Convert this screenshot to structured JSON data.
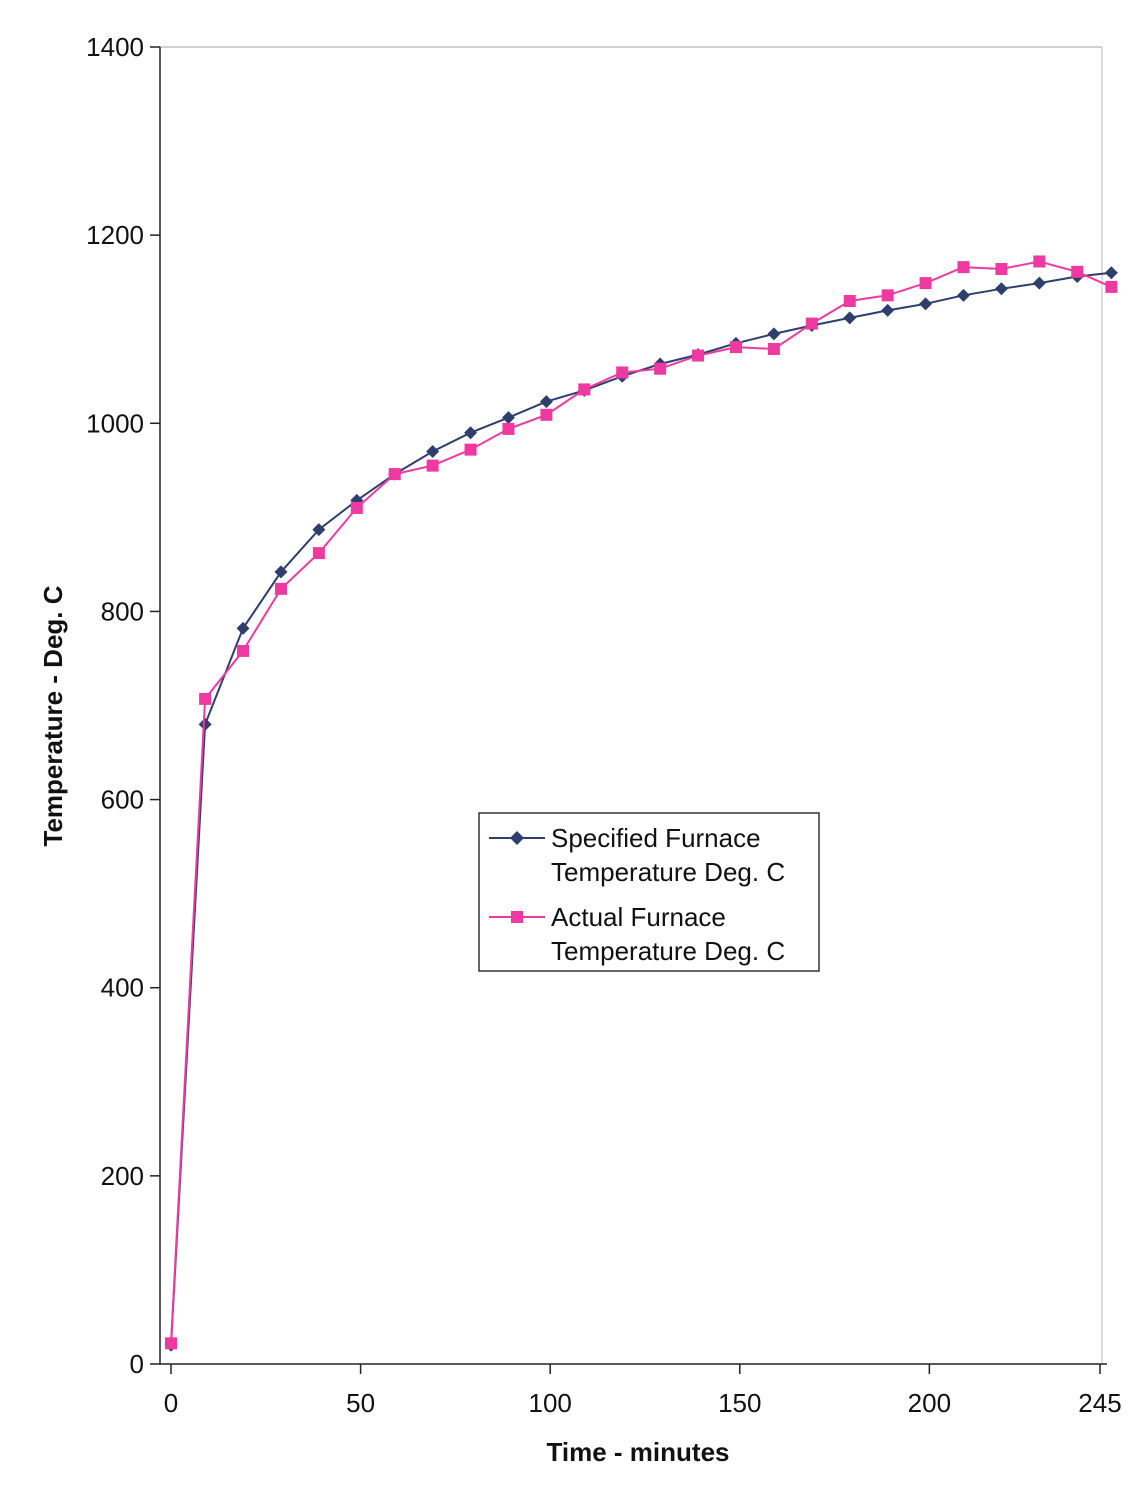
{
  "chart_data": {
    "type": "line",
    "xlabel": "Time - minutes",
    "ylabel": "Temperature - Deg. C",
    "xlim": [
      0,
      245
    ],
    "ylim": [
      0,
      1400
    ],
    "xticks": [
      0,
      50,
      100,
      150,
      200,
      245
    ],
    "yticks": [
      0,
      200,
      400,
      600,
      800,
      1000,
      1200,
      1400
    ],
    "grid": false,
    "legend": {
      "placement": "center-right"
    },
    "x": [
      0,
      9,
      19,
      29,
      39,
      49,
      59,
      69,
      79,
      89,
      99,
      109,
      119,
      129,
      139,
      149,
      159,
      169,
      179,
      189,
      199,
      209,
      219,
      229,
      239,
      248
    ],
    "series": [
      {
        "name": "Specified Furnace Temperature Deg. C",
        "line1": "Specified Furnace",
        "line2": "Temperature Deg. C",
        "color": "#2e3f6e",
        "marker": "diamond",
        "values": [
          20,
          680,
          782,
          842,
          887,
          918,
          946,
          970,
          990,
          1006,
          1023,
          1035,
          1050,
          1063,
          1073,
          1085,
          1095,
          1104,
          1112,
          1120,
          1127,
          1136,
          1143,
          1149,
          1156,
          1160
        ]
      },
      {
        "name": "Actual Furnace Temperature Deg. C",
        "line1": "Actual Furnace",
        "line2": "Temperature Deg. C",
        "color": "#ee3aa0",
        "marker": "square",
        "values": [
          22,
          707,
          758,
          824,
          862,
          910,
          946,
          955,
          972,
          994,
          1009,
          1036,
          1054,
          1058,
          1072,
          1081,
          1079,
          1106,
          1130,
          1136,
          1149,
          1166,
          1164,
          1172,
          1161,
          1145
        ]
      }
    ]
  }
}
